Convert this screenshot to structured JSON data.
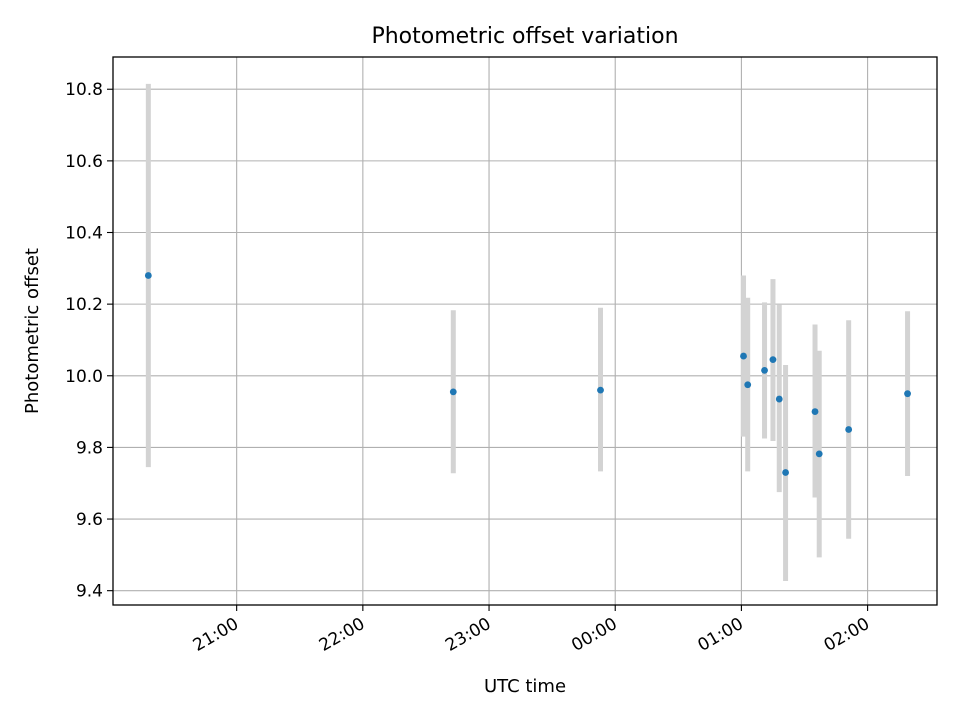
{
  "chart_data": {
    "type": "scatter",
    "title": "Photometric offset variation",
    "xlabel": "UTC time",
    "ylabel": "Photometric offset",
    "x_ticks": [
      "21:00",
      "22:00",
      "23:00",
      "00:00",
      "01:00",
      "02:00"
    ],
    "x_tick_values_hours": [
      21,
      22,
      23,
      24,
      25,
      26
    ],
    "xlim_hours": [
      20.02,
      26.55
    ],
    "y_ticks": [
      "9.4",
      "9.6",
      "9.8",
      "10.0",
      "10.2",
      "10.4",
      "10.6",
      "10.8"
    ],
    "y_tick_values": [
      9.4,
      9.6,
      9.8,
      10.0,
      10.2,
      10.4,
      10.6,
      10.8
    ],
    "ylim": [
      9.36,
      10.89
    ],
    "grid": true,
    "marker_color": "#1f77b4",
    "errorbar_color": "#d3d3d3",
    "points": [
      {
        "time": "20:18",
        "y": 10.28,
        "low": 9.745,
        "high": 10.815
      },
      {
        "time": "22:43",
        "y": 9.955,
        "low": 9.728,
        "high": 10.183
      },
      {
        "time": "23:53",
        "y": 9.96,
        "low": 9.733,
        "high": 10.19
      },
      {
        "time": "01:01",
        "y": 10.055,
        "low": 9.83,
        "high": 10.28
      },
      {
        "time": "01:03",
        "y": 9.975,
        "low": 9.733,
        "high": 10.218
      },
      {
        "time": "01:11",
        "y": 10.015,
        "low": 9.825,
        "high": 10.205
      },
      {
        "time": "01:15",
        "y": 10.045,
        "low": 9.818,
        "high": 10.27
      },
      {
        "time": "01:18",
        "y": 9.935,
        "low": 9.675,
        "high": 10.198
      },
      {
        "time": "01:21",
        "y": 9.73,
        "low": 9.427,
        "high": 10.03
      },
      {
        "time": "01:35",
        "y": 9.9,
        "low": 9.66,
        "high": 10.143
      },
      {
        "time": "01:37",
        "y": 9.782,
        "low": 9.493,
        "high": 10.07
      },
      {
        "time": "01:51",
        "y": 9.85,
        "low": 9.545,
        "high": 10.155
      },
      {
        "time": "02:19",
        "y": 9.95,
        "low": 9.72,
        "high": 10.18
      }
    ]
  }
}
